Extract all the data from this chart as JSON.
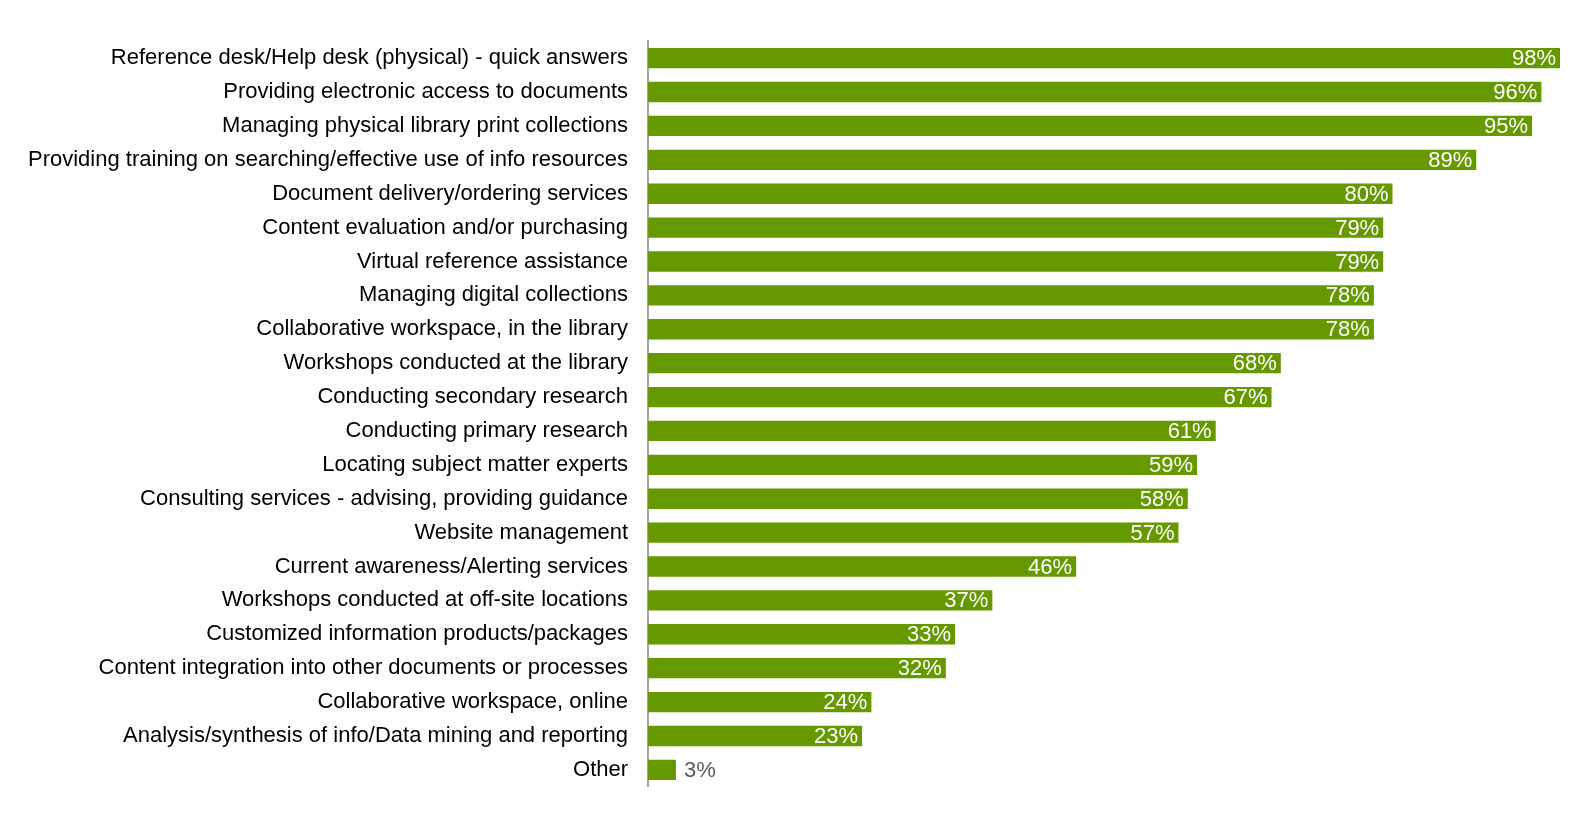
{
  "chart_data": {
    "type": "bar",
    "orientation": "horizontal",
    "color": "#669900",
    "categories": [
      "Reference desk/Help desk (physical) - quick answers",
      "Providing electronic access to documents",
      "Managing physical library print collections",
      "Providing training on searching/effective use of info resources",
      "Document delivery/ordering services",
      "Content evaluation and/or purchasing",
      "Virtual reference assistance",
      "Managing digital collections",
      "Collaborative workspace, in the library",
      "Workshops conducted at the library",
      "Conducting secondary research",
      "Conducting primary research",
      "Locating subject matter experts",
      "Consulting services - advising, providing guidance",
      "Website management",
      "Current awareness/Alerting services",
      "Workshops conducted at off-site locations",
      "Customized information products/packages",
      "Content integration into other documents or processes",
      "Collaborative workspace, online",
      "Analysis/synthesis of info/Data mining and reporting",
      "Other"
    ],
    "values": [
      98,
      96,
      95,
      89,
      80,
      79,
      79,
      78,
      78,
      68,
      67,
      61,
      59,
      58,
      57,
      46,
      37,
      33,
      32,
      24,
      23,
      3
    ],
    "value_labels": [
      "98%",
      "96%",
      "95%",
      "89%",
      "80%",
      "79%",
      "79%",
      "78%",
      "78%",
      "68%",
      "67%",
      "61%",
      "59%",
      "58%",
      "57%",
      "46%",
      "37%",
      "33%",
      "32%",
      "24%",
      "23%",
      "3%"
    ],
    "grid": false,
    "legend": false,
    "tick_labels": "y"
  }
}
